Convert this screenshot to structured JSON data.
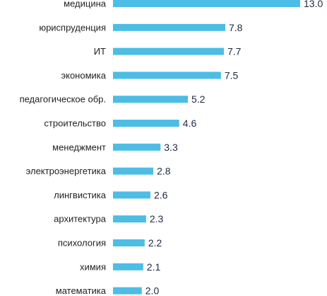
{
  "chart_data": {
    "type": "bar",
    "orientation": "horizontal",
    "categories": [
      "медицина",
      "юриспруденция",
      "ИТ",
      "экономика",
      "педагогическое обр.",
      "строительство",
      "менеджмент",
      "электроэнергетика",
      "лингвистика",
      "архитектура",
      "психология",
      "химия",
      "математика"
    ],
    "values": [
      13.0,
      7.8,
      7.7,
      7.5,
      5.2,
      4.6,
      3.3,
      2.8,
      2.6,
      2.3,
      2.2,
      2.1,
      2.0
    ],
    "value_labels": [
      "13.0",
      "7.8",
      "7.7",
      "7.5",
      "5.2",
      "4.6",
      "3.3",
      "2.8",
      "2.6",
      "2.3",
      "2.2",
      "2.1",
      "2.0"
    ],
    "xlim": [
      0,
      13.0
    ],
    "grid": false,
    "bar_color": "#4dbde5",
    "label_color": "#222222",
    "value_color": "#1f2a44"
  }
}
